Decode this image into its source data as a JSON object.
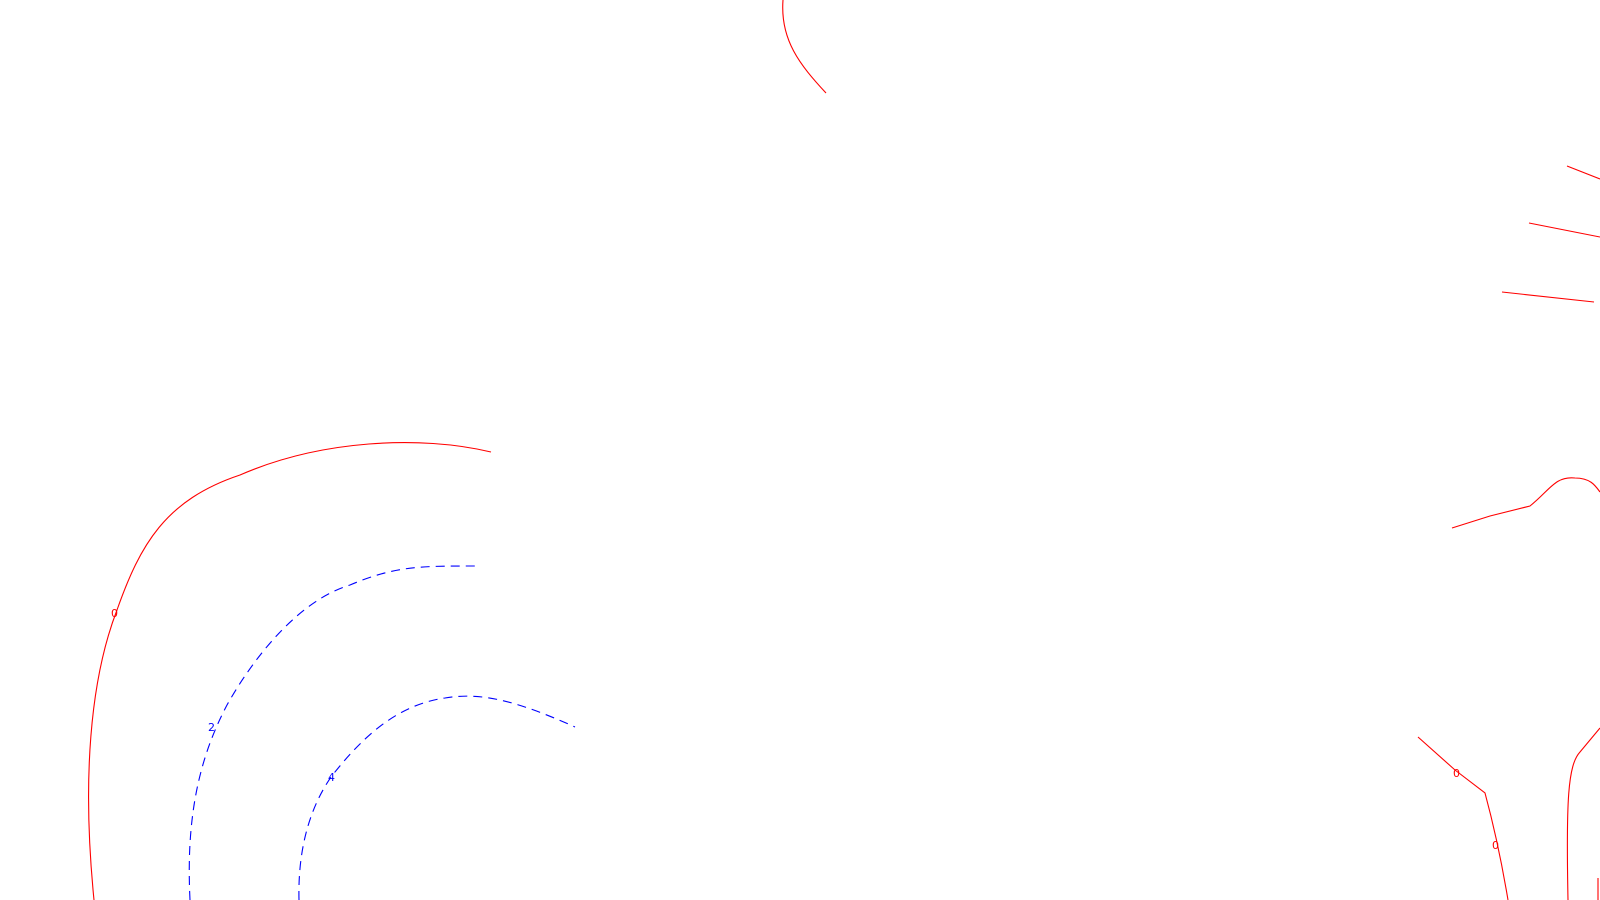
{
  "colors": {
    "background": "#ffffff",
    "zero_contour": "#ff0000",
    "positive_contour": "#0000ff"
  },
  "contour_labels": {
    "left_zero": "0",
    "left_two": "2",
    "left_four": "4",
    "right_zero_a": "0",
    "right_zero_b": "0"
  }
}
